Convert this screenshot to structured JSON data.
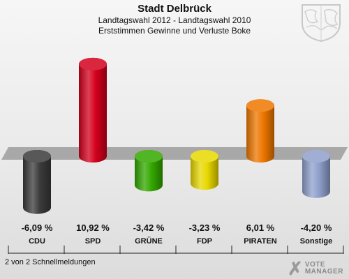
{
  "header": {
    "title": "Stadt Delbrück",
    "subtitle1": "Landtagswahl 2012 - Landtagswahl 2010",
    "subtitle2": "Erststimmen Gewinne und Verluste Boke"
  },
  "footer": {
    "note": "2 von 2 Schnellmeldungen",
    "logo_line1": "VOTE",
    "logo_line2": "MANAGER"
  },
  "colors": {
    "CDU": "#3b3b3b",
    "SPD": "#d4001c",
    "GRÜNE": "#33a800",
    "FDP": "#e8d800",
    "PIRATEN": "#ee7700",
    "Sonstige": "#8fa0cc"
  },
  "chart_data": {
    "type": "bar",
    "categories": [
      "CDU",
      "SPD",
      "GRÜNE",
      "FDP",
      "PIRATEN",
      "Sonstige"
    ],
    "values": [
      -6.09,
      10.92,
      -3.42,
      -3.23,
      6.01,
      -4.2
    ],
    "value_labels": [
      "-6,09 %",
      "10,92 %",
      "-3,42 %",
      "-3,23 %",
      "6,01 %",
      "-4,20 %"
    ],
    "title": "Stadt Delbrück",
    "subtitle": "Landtagswahl 2012 - Landtagswahl 2010 Erststimmen Gewinne und Verluste Boke",
    "xlabel": "",
    "ylabel": "",
    "grid": false,
    "legend": "none"
  }
}
